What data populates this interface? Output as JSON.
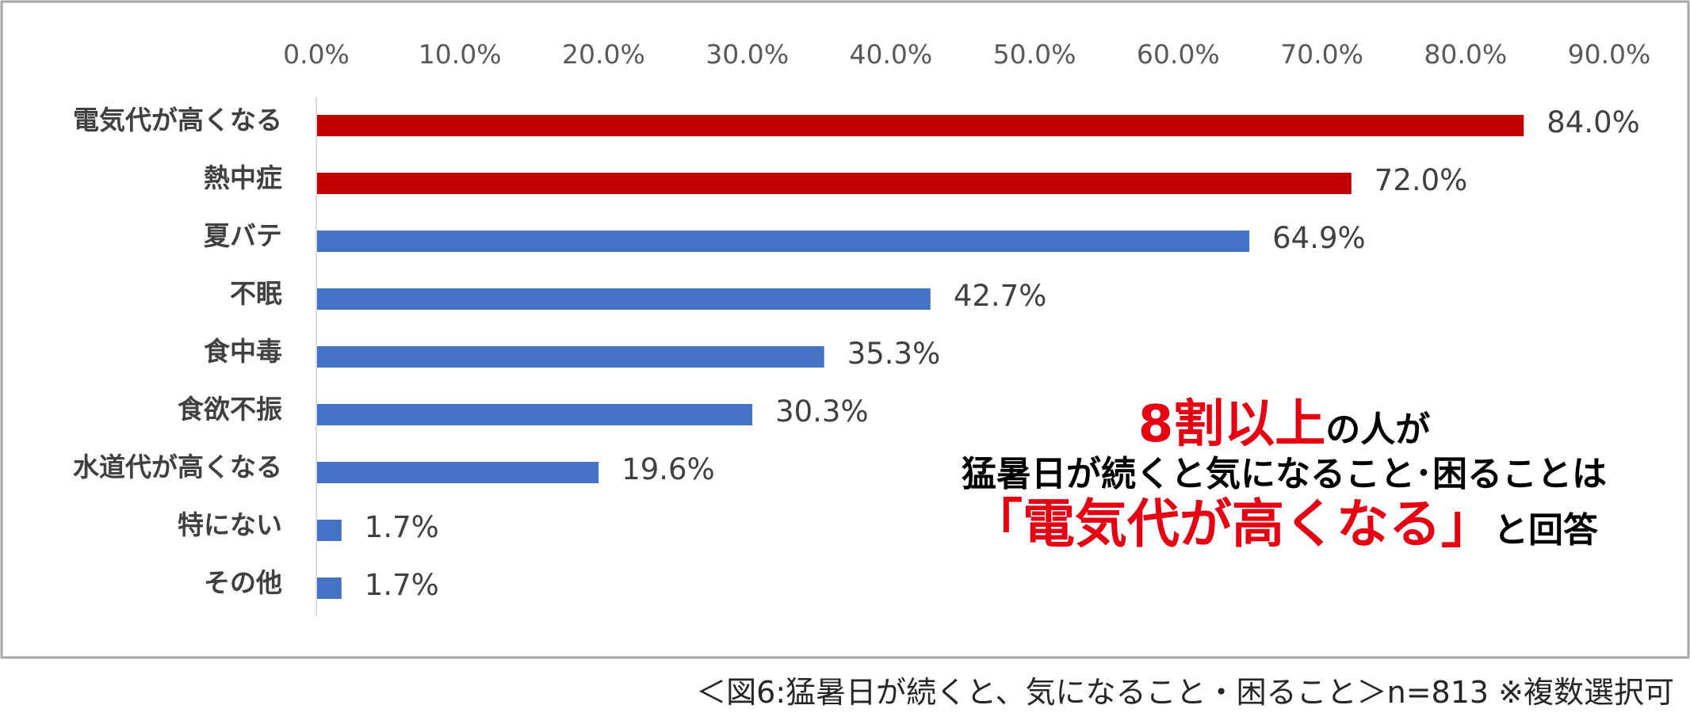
{
  "chart_data": {
    "type": "bar",
    "orientation": "horizontal",
    "categories": [
      "電気代が高くなる",
      "熱中症",
      "夏バテ",
      "不眠",
      "食中毒",
      "食欲不振",
      "水道代が高くなる",
      "特にない",
      "その他"
    ],
    "values": [
      84.0,
      72.0,
      64.9,
      42.7,
      35.3,
      30.3,
      19.6,
      1.7,
      1.7
    ],
    "value_labels": [
      "84.0%",
      "72.0%",
      "64.9%",
      "42.7%",
      "35.3%",
      "30.3%",
      "19.6%",
      "1.7%",
      "1.7%"
    ],
    "highlight": [
      true,
      true,
      false,
      false,
      false,
      false,
      false,
      false,
      false
    ],
    "xlim": [
      0,
      90
    ],
    "xticks": [
      "0.0%",
      "10.0%",
      "20.0%",
      "30.0%",
      "40.0%",
      "50.0%",
      "60.0%",
      "70.0%",
      "80.0%",
      "90.0%"
    ],
    "axis_position": "top",
    "grid": false,
    "colors": {
      "highlight": "#c00000",
      "default": "#4472c4"
    }
  },
  "callout": {
    "line1_red": "8割以上",
    "line1_black": "の人が",
    "line2": "猛暑日が続くと気になること･困ることは",
    "line3_red": "「電気代が高くなる」",
    "line3_black": "と回答"
  },
  "caption": "＜図6:猛暑日が続くと、気になること・困ること＞n=813 ※複数選択可",
  "colors": {
    "frame_border": "#a6a6a6",
    "axis_line": "#d9d9d9",
    "callout_red": "#e60012"
  }
}
